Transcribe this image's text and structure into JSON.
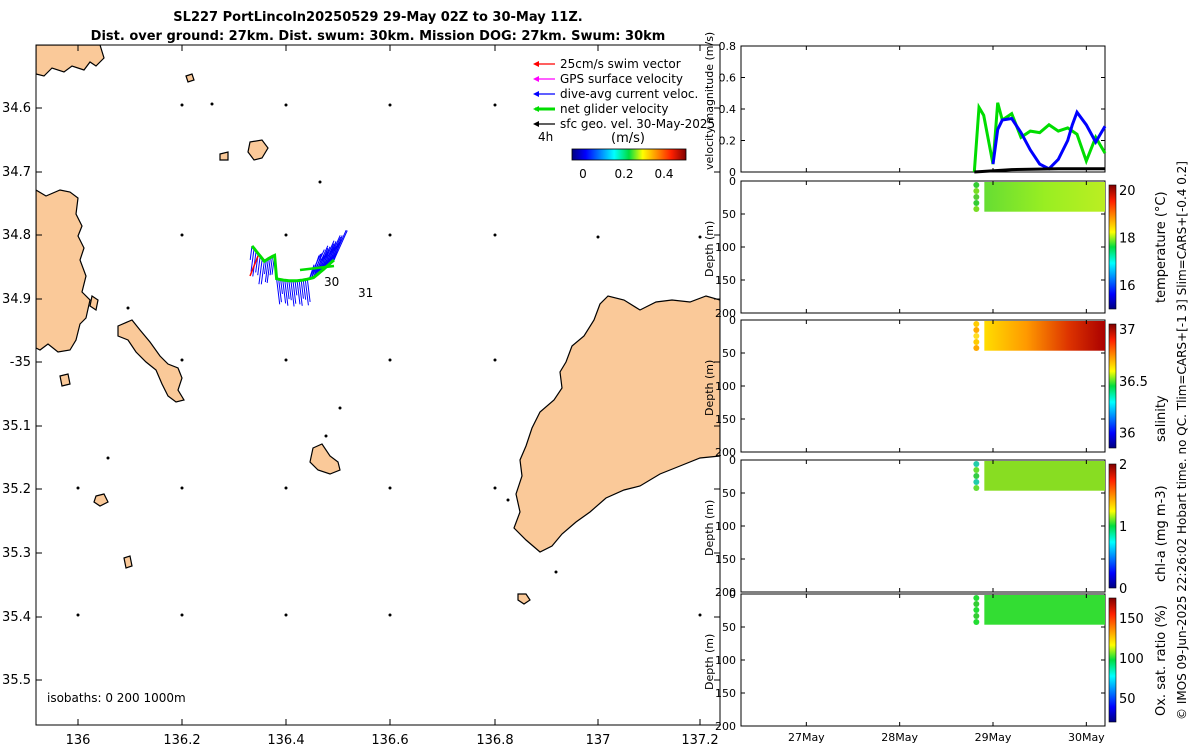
{
  "title": {
    "line1": "SL227 PortLincoln20250529 29-May 02Z to 30-May 11Z.",
    "line2": "Dist. over ground: 27km. Dist. swum: 30km. Mission DOG: 27km. Swum: 30km"
  },
  "map": {
    "legend": [
      {
        "label": "25cm/s swim vector",
        "color": "#ff0000"
      },
      {
        "label": "GPS surface velocity",
        "color": "#ff00ff"
      },
      {
        "label": "dive-avg current veloc.",
        "color": "#0000ff"
      },
      {
        "label": "net glider velocity",
        "color": "#00dd00"
      },
      {
        "label": "sfc geo. vel. 30-May-2025",
        "color": "#000000"
      }
    ],
    "scale_label": "4h",
    "colorbar_title": "(m/s)",
    "colorbar_ticks": [
      "0",
      "0.2",
      "0.4"
    ],
    "isobaths_label": "isobaths: 0   200  1000m",
    "day_labels": [
      "30",
      "31"
    ],
    "lon_ticks": [
      "136",
      "136.2",
      "136.4",
      "136.6",
      "136.8",
      "137",
      "137.2"
    ],
    "lat_ticks": [
      "34.6",
      "34.7",
      "34.8",
      "34.9",
      "-35",
      "35.1",
      "35.2",
      "35.3",
      "35.4",
      "35.5"
    ],
    "land_color": "#fac999"
  },
  "right_label": "© IMOS 09-Jun-2025 22:26:02 Hobart time. no QC. Tlim=CARS+[-1 3] Slim=CARS+[-0.4 0.2]",
  "chart_data": [
    {
      "type": "line",
      "ylabel": "velocity magnitude (m/s)",
      "ylim": [
        0,
        0.8
      ],
      "yticks": [
        "0",
        "0.2",
        "0.4",
        "0.6",
        "0.8"
      ],
      "x_units": "days (May 2025)",
      "series": [
        {
          "color": "#00dd00",
          "x": [
            29.1,
            29.15,
            29.2,
            29.3,
            29.35,
            29.4,
            29.5,
            29.6,
            29.7,
            29.8,
            29.9,
            30.0,
            30.1,
            30.2,
            30.3,
            30.4,
            30.5
          ],
          "y": [
            0.0,
            0.41,
            0.36,
            0.05,
            0.44,
            0.33,
            0.37,
            0.22,
            0.26,
            0.25,
            0.3,
            0.26,
            0.28,
            0.24,
            0.07,
            0.22,
            0.12
          ]
        },
        {
          "color": "#0000ff",
          "x": [
            29.3,
            29.35,
            29.4,
            29.5,
            29.6,
            29.7,
            29.8,
            29.9,
            30.0,
            30.1,
            30.15,
            30.2,
            30.3,
            30.4,
            30.5
          ],
          "y": [
            0.05,
            0.27,
            0.33,
            0.34,
            0.25,
            0.14,
            0.05,
            0.02,
            0.08,
            0.2,
            0.3,
            0.38,
            0.3,
            0.19,
            0.29
          ]
        },
        {
          "color": "#000000",
          "x": [
            29.1,
            29.5,
            30.0,
            30.5
          ],
          "y": [
            0.0,
            0.015,
            0.02,
            0.02
          ]
        }
      ]
    },
    {
      "type": "heatmap",
      "ylabel": "Depth (m)",
      "yticks": [
        "0",
        "50",
        "100",
        "150",
        "200"
      ],
      "colorbar_label": "temperature (°C)",
      "colorbar_ticks": [
        "16",
        "18",
        "20"
      ],
      "clim": [
        15,
        20.2
      ],
      "x_range_days": [
        29.1,
        30.5
      ],
      "depth_range_m": [
        0,
        45
      ]
    },
    {
      "type": "heatmap",
      "ylabel": "Depth (m)",
      "yticks": [
        "0",
        "50",
        "100",
        "150",
        "200"
      ],
      "colorbar_label": "salinity",
      "colorbar_ticks": [
        "36",
        "36.5",
        "37"
      ],
      "clim": [
        35.85,
        37.05
      ],
      "x_range_days": [
        29.1,
        30.5
      ],
      "depth_range_m": [
        0,
        45
      ]
    },
    {
      "type": "heatmap",
      "ylabel": "Depth (m)",
      "yticks": [
        "0",
        "50",
        "100",
        "150",
        "200"
      ],
      "colorbar_label": "chl-a (mg m-3)",
      "colorbar_ticks": [
        "0",
        "1",
        "2"
      ],
      "clim": [
        0,
        2
      ],
      "x_range_days": [
        29.1,
        30.5
      ],
      "depth_range_m": [
        0,
        45
      ]
    },
    {
      "type": "heatmap",
      "ylabel": "Depth (m)",
      "yticks": [
        "0",
        "50",
        "100",
        "150",
        "200"
      ],
      "colorbar_label": "Ox. sat. ratio (%)",
      "colorbar_ticks": [
        "50",
        "100",
        "150"
      ],
      "clim": [
        20,
        175
      ],
      "x_range_days": [
        29.1,
        30.5
      ],
      "depth_range_m": [
        0,
        45
      ],
      "xticks": [
        "27May",
        "28May",
        "29May",
        "30May"
      ]
    }
  ]
}
